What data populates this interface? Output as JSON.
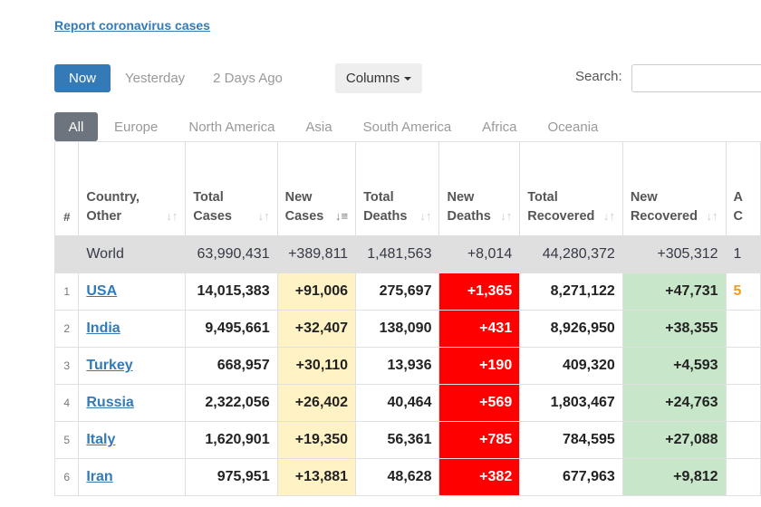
{
  "report_link": "Report coronavirus cases",
  "day_tabs": [
    "Now",
    "Yesterday",
    "2 Days Ago"
  ],
  "columns_button": "Columns",
  "search_label": "Search:",
  "search_value": "",
  "regions": [
    "All",
    "Europe",
    "North America",
    "Asia",
    "South America",
    "Africa",
    "Oceania"
  ],
  "headers": {
    "idx": "#",
    "country": "Country,\nOther",
    "total_cases": "Total\nCases",
    "new_cases": "New\nCases",
    "total_deaths": "Total\nDeaths",
    "new_deaths": "New\nDeaths",
    "total_recovered": "Total\nRecovered",
    "new_recovered": "New\nRecovered",
    "truncated": "A\nC"
  },
  "world": {
    "country": "World",
    "total_cases": "63,990,431",
    "new_cases": "+389,811",
    "total_deaths": "1,481,563",
    "new_deaths": "+8,014",
    "total_recovered": "44,280,372",
    "new_recovered": "+305,312",
    "truncated": "1"
  },
  "rows": [
    {
      "idx": "1",
      "country": "USA",
      "total_cases": "14,015,383",
      "new_cases": "+91,006",
      "total_deaths": "275,697",
      "new_deaths": "+1,365",
      "total_recovered": "8,271,122",
      "new_recovered": "+47,731",
      "truncated": "5"
    },
    {
      "idx": "2",
      "country": "India",
      "total_cases": "9,495,661",
      "new_cases": "+32,407",
      "total_deaths": "138,090",
      "new_deaths": "+431",
      "total_recovered": "8,926,950",
      "new_recovered": "+38,355",
      "truncated": ""
    },
    {
      "idx": "3",
      "country": "Turkey",
      "total_cases": "668,957",
      "new_cases": "+30,110",
      "total_deaths": "13,936",
      "new_deaths": "+190",
      "total_recovered": "409,320",
      "new_recovered": "+4,593",
      "truncated": ""
    },
    {
      "idx": "4",
      "country": "Russia",
      "total_cases": "2,322,056",
      "new_cases": "+26,402",
      "total_deaths": "40,464",
      "new_deaths": "+569",
      "total_recovered": "1,803,467",
      "new_recovered": "+24,763",
      "truncated": ""
    },
    {
      "idx": "5",
      "country": "Italy",
      "total_cases": "1,620,901",
      "new_cases": "+19,350",
      "total_deaths": "56,361",
      "new_deaths": "+785",
      "total_recovered": "784,595",
      "new_recovered": "+27,088",
      "truncated": ""
    },
    {
      "idx": "6",
      "country": "Iran",
      "total_cases": "975,951",
      "new_cases": "+13,881",
      "total_deaths": "48,628",
      "new_deaths": "+382",
      "total_recovered": "677,963",
      "new_recovered": "+9,812",
      "truncated": ""
    }
  ],
  "colors": {
    "link": "#337ab7",
    "new_cases_bg": "#fff3c6",
    "new_deaths_bg": "#ff0000",
    "new_recovered_bg": "#c8e6c9",
    "world_row_bg": "#dfdfdf"
  }
}
